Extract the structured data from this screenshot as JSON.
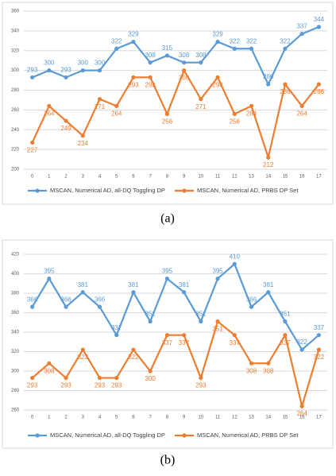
{
  "chart_data": [
    {
      "type": "line",
      "caption": "(a)",
      "categories": [
        "0",
        "1",
        "2",
        "3",
        "4",
        "5",
        "6",
        "7",
        "8",
        "9",
        "10",
        "11",
        "12",
        "13",
        "14",
        "15",
        "16",
        "17"
      ],
      "series": [
        {
          "name": "MSCAN, Numerical AD, all-DQ Toggling DP",
          "color": "#5b9bd5",
          "values": [
            293,
            300,
            293,
            300,
            300,
            322,
            329,
            308,
            315,
            308,
            308,
            329,
            322,
            322,
            286,
            322,
            337,
            344
          ]
        },
        {
          "name": "MSCAN, Numerical AD, PRBS DP Set",
          "color": "#ed7d31",
          "values": [
            227,
            264,
            249,
            234,
            271,
            264,
            293,
            293,
            256,
            300,
            271,
            293,
            256,
            264,
            212,
            286,
            264,
            286
          ]
        }
      ],
      "ylim": [
        200,
        360
      ],
      "yticks": [
        200,
        220,
        240,
        260,
        280,
        300,
        320,
        340,
        360
      ],
      "grid": true,
      "legend": "bottom"
    },
    {
      "type": "line",
      "caption": "(b)",
      "categories": [
        "0",
        "1",
        "2",
        "3",
        "4",
        "5",
        "6",
        "7",
        "8",
        "9",
        "10",
        "11",
        "12",
        "13",
        "14",
        "15",
        "16",
        "17"
      ],
      "series": [
        {
          "name": "MSCAN, Numerical AD, all-DQ Toggling DP",
          "color": "#5b9bd5",
          "values": [
            366,
            395,
            366,
            381,
            366,
            337,
            381,
            351,
            395,
            381,
            351,
            395,
            410,
            366,
            381,
            351,
            322,
            337
          ]
        },
        {
          "name": "MSCAN, Numerical AD, PRBS DP Set",
          "color": "#ed7d31",
          "values": [
            293,
            308,
            293,
            322,
            293,
            293,
            322,
            300,
            337,
            337,
            293,
            351,
            337,
            308,
            308,
            337,
            264,
            322
          ]
        }
      ],
      "ylim": [
        260,
        420
      ],
      "yticks": [
        260,
        280,
        300,
        320,
        340,
        360,
        380,
        400,
        420
      ],
      "grid": true,
      "legend": "bottom"
    }
  ]
}
